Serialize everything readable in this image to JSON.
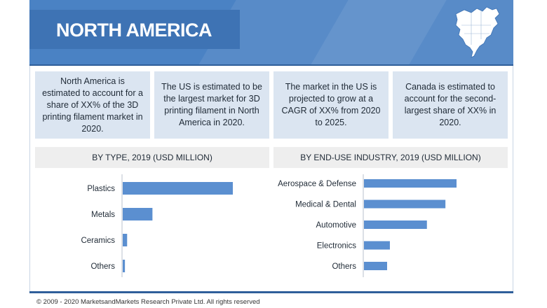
{
  "header": {
    "title": "NORTH AMERICA",
    "map_icon": "north-america-map-icon"
  },
  "colors": {
    "header": "#4a82c4",
    "title_box": "#3e73b4",
    "fact_bg": "#dbe5f1",
    "bar": "#5b8fd0"
  },
  "facts": [
    "North America is estimated to account for a share of XX% of the 3D printing filament market in 2020.",
    "The US is estimated to be the largest market for 3D printing filament in North America in 2020.",
    "The market in the US is projected to grow at a CAGR of XX% from 2020 to 2025.",
    "Canada is estimated to account for the second-largest share of XX% in 2020."
  ],
  "chart_data": [
    {
      "type": "bar",
      "orientation": "horizontal",
      "title": "BY TYPE, 2019 (USD MILLION)",
      "categories": [
        "Plastics",
        "Metals",
        "Ceramics",
        "Others"
      ],
      "values": [
        100,
        27,
        4,
        2
      ],
      "xlim": [
        0,
        100
      ],
      "xlabel": "",
      "ylabel": ""
    },
    {
      "type": "bar",
      "orientation": "horizontal",
      "title": "BY END-USE INDUSTRY, 2019 (USD MILLION)",
      "categories": [
        "Aerospace & Defense",
        "Medical & Dental",
        "Automotive",
        "Electronics",
        "Others"
      ],
      "values": [
        100,
        88,
        68,
        28,
        25
      ],
      "xlim": [
        0,
        100
      ],
      "xlabel": "",
      "ylabel": ""
    }
  ],
  "footer": "© 2009 - 2020 MarketsandMarkets Research Private Ltd. All rights reserved"
}
